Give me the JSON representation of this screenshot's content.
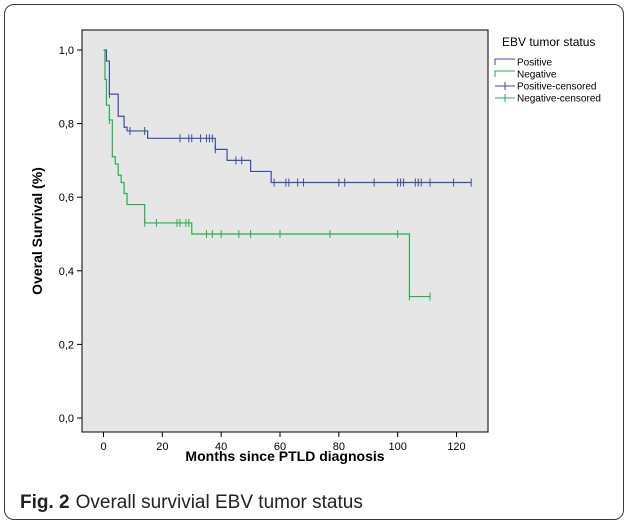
{
  "figure": {
    "caption_label": "Fig. 2",
    "caption_text": "Overall survivial EBV tumor status"
  },
  "colors": {
    "positive": "#3a4fa0",
    "negative": "#21b24a",
    "plot_background": "#e6e6e6"
  },
  "chart_data": {
    "type": "line",
    "subtype": "kaplan-meier",
    "xlabel": "Months since PTLD diagnosis",
    "ylabel": "Overal Survival (%)",
    "xlim": [
      -5,
      130
    ],
    "ylim": [
      -0.02,
      1.02
    ],
    "xticks": [
      0,
      20,
      40,
      60,
      80,
      100,
      120
    ],
    "yticks": [
      0.0,
      0.2,
      0.4,
      0.6,
      0.8,
      1.0
    ],
    "ytick_labels": [
      "0,0",
      "0,2",
      "0,4",
      "0,6",
      "0,8",
      "1,0"
    ],
    "grid": false,
    "legend": {
      "title": "EBV tumor status",
      "placement": "right",
      "entries": [
        "Positive",
        "Negative",
        "Positive-censored",
        "Negative-censored"
      ]
    },
    "series": [
      {
        "name": "Positive",
        "color": "#3a4fa0",
        "steps": [
          [
            0,
            1.0
          ],
          [
            1,
            0.97
          ],
          [
            2,
            0.88
          ],
          [
            5,
            0.82
          ],
          [
            7,
            0.79
          ],
          [
            8,
            0.78
          ],
          [
            15,
            0.76
          ],
          [
            38,
            0.73
          ],
          [
            42,
            0.7
          ],
          [
            50,
            0.67
          ],
          [
            57,
            0.64
          ],
          [
            125,
            0.64
          ]
        ],
        "censored_x": [
          2,
          9,
          14,
          26,
          29,
          30,
          33,
          35,
          36,
          37,
          38,
          45,
          47,
          58,
          62,
          63,
          66,
          68,
          80,
          82,
          92,
          100,
          101,
          102,
          106,
          107,
          108,
          111,
          119,
          125
        ]
      },
      {
        "name": "Negative",
        "color": "#21b24a",
        "steps": [
          [
            0,
            1.0
          ],
          [
            0.5,
            0.92
          ],
          [
            1,
            0.85
          ],
          [
            2,
            0.81
          ],
          [
            3,
            0.71
          ],
          [
            4,
            0.69
          ],
          [
            5,
            0.66
          ],
          [
            6,
            0.64
          ],
          [
            7,
            0.61
          ],
          [
            8,
            0.58
          ],
          [
            14,
            0.53
          ],
          [
            30,
            0.5
          ],
          [
            104,
            0.33
          ],
          [
            111,
            0.33
          ]
        ],
        "censored_x": [
          2,
          14,
          18,
          25,
          26,
          28,
          29,
          35,
          37,
          40,
          46,
          50,
          60,
          77,
          100,
          104,
          111
        ]
      }
    ]
  }
}
